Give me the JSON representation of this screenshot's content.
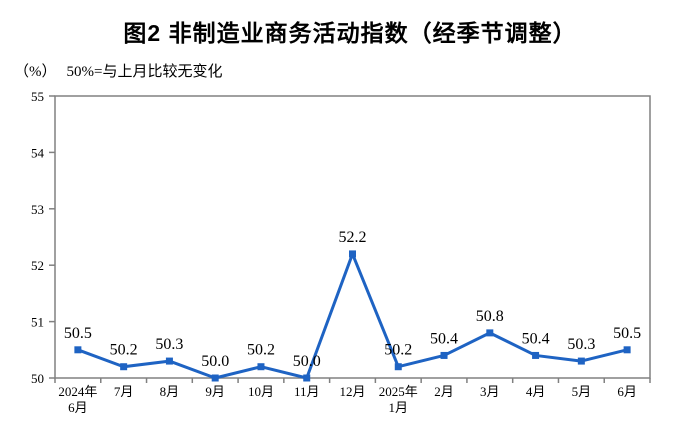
{
  "title": "图2 非制造业商务活动指数（经季节调整）",
  "subtitle": {
    "unit": "（%）",
    "note": "50%=与上月比较无变化"
  },
  "colors": {
    "line": "#1e63c3",
    "frame": "#808080",
    "text": "#000000"
  },
  "chart_data": {
    "type": "line",
    "title": "图2 非制造业商务活动指数（经季节调整）",
    "unit_label": "（%）",
    "reference_note": "50%=与上月比较无变化",
    "categories": [
      "2024年\n6月",
      "7月",
      "8月",
      "9月",
      "10月",
      "11月",
      "12月",
      "2025年\n1月",
      "2月",
      "3月",
      "4月",
      "5月",
      "6月"
    ],
    "values": [
      50.5,
      50.2,
      50.3,
      50.0,
      50.2,
      50.0,
      52.2,
      50.2,
      50.4,
      50.8,
      50.4,
      50.3,
      50.5
    ],
    "ylim": [
      50,
      55
    ],
    "yticks": [
      50,
      51,
      52,
      53,
      54,
      55
    ],
    "grid": false,
    "legend": "none",
    "marker": "square",
    "data_labels": true
  }
}
